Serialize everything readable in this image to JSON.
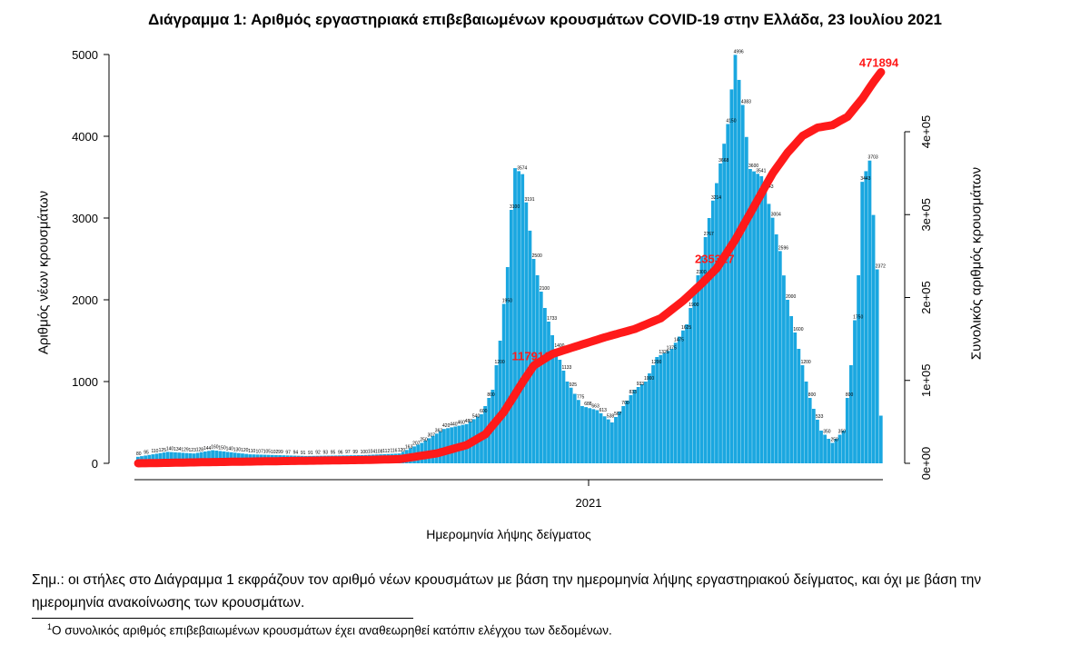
{
  "title": "Διάγραμμα 1: Αριθμός εργαστηριακά επιβεβαιωμένων κρουσμάτων COVID-19 στην Ελλάδα, 23 Ιουλίου 2021",
  "note": "Σημ.: οι στήλες στο Διάγραμμα 1 εκφράζουν τον αριθμό νέων κρουσμάτων με βάση την ημερομηνία λήψης εργαστηριακού δείγματος, και όχι με βάση την ημερομηνία ανακοίνωσης των κρουσμάτων.",
  "footnote_mark": "1",
  "footnote": "Ο συνολικός αριθμός επιβεβαιωμένων κρουσμάτων έχει αναθεωρηθεί κατόπιν ελέγχου των δεδομένων.",
  "colors": {
    "bars": "#1aa7e0",
    "cumulative_line": "#ff1a1a",
    "cumulative_labels": "#ff1a1a"
  },
  "chart_data": {
    "type": "bar",
    "title": "Διάγραμμα 1: Αριθμός εργαστηριακά επιβεβαιωμένων κρουσμάτων COVID-19 στην Ελλάδα, 23 Ιουλίου 2021",
    "xlabel": "Ημερομηνία λήψης δείγματος",
    "ylabel": "Αριθμός νέων κρουσμάτων",
    "y2label": "Συνολικός αριθμός κρουσμάτων",
    "x_ticks": [
      "2021"
    ],
    "y_ticks": [
      0,
      1000,
      2000,
      3000,
      4000,
      5000
    ],
    "y_tick_labels": [
      "0",
      "1000",
      "2000",
      "3000",
      "4000",
      "5000"
    ],
    "y2_ticks": [
      0,
      100000,
      200000,
      300000,
      400000
    ],
    "y2_tick_labels": [
      "0e+00",
      "1e+05",
      "2e+05",
      "3e+05",
      "4e+05"
    ],
    "ylim": [
      0,
      5000
    ],
    "y2lim": [
      0,
      400000
    ],
    "grid": false,
    "series": [
      {
        "name": "Αριθμός νέων κρουσμάτων",
        "type": "bar",
        "knots": [
          [
            0,
            80
          ],
          [
            8,
            140
          ],
          [
            15,
            120
          ],
          [
            20,
            160
          ],
          [
            30,
            110
          ],
          [
            45,
            90
          ],
          [
            60,
            100
          ],
          [
            70,
            120
          ],
          [
            76,
            250
          ],
          [
            82,
            420
          ],
          [
            88,
            480
          ],
          [
            92,
            600
          ],
          [
            95,
            900
          ],
          [
            97,
            1500
          ],
          [
            99,
            2400
          ],
          [
            100,
            3100
          ],
          [
            101,
            3610
          ],
          [
            103,
            3537
          ],
          [
            106,
            2500
          ],
          [
            109,
            1900
          ],
          [
            112,
            1400
          ],
          [
            115,
            1000
          ],
          [
            119,
            700
          ],
          [
            123,
            650
          ],
          [
            127,
            500
          ],
          [
            130,
            700
          ],
          [
            133,
            900
          ],
          [
            136,
            1000
          ],
          [
            139,
            1300
          ],
          [
            143,
            1400
          ],
          [
            147,
            1700
          ],
          [
            150,
            2300
          ],
          [
            153,
            3000
          ],
          [
            155,
            3427
          ],
          [
            158,
            4150
          ],
          [
            160,
            4996
          ],
          [
            162,
            4383
          ],
          [
            164,
            3600
          ],
          [
            167,
            3512
          ],
          [
            170,
            3004
          ],
          [
            172,
            2596
          ],
          [
            174,
            2000
          ],
          [
            177,
            1400
          ],
          [
            180,
            800
          ],
          [
            183,
            400
          ],
          [
            186,
            250
          ],
          [
            189,
            400
          ],
          [
            191,
            1200
          ],
          [
            193,
            2300
          ],
          [
            194,
            3443
          ],
          [
            196,
            3703
          ],
          [
            198,
            2372
          ],
          [
            199,
            583
          ]
        ],
        "labeled_values": [
          161,
          3610,
          3537,
          3427,
          4051,
          4150,
          4675,
          4996,
          4383,
          4247,
          3512,
          3004,
          2596,
          2455,
          2385,
          1919,
          1311,
          3443,
          3703,
          2372,
          583
        ]
      },
      {
        "name": "Συνολικός αριθμός κρουσμάτων",
        "type": "line",
        "axis": "y2",
        "labeled_points": [
          {
            "label": "117910",
            "value": 117910
          },
          {
            "label": "235317",
            "value": 235317
          },
          {
            "label": "471894",
            "value": 471894
          }
        ],
        "knots": [
          [
            0,
            0
          ],
          [
            20,
            1500
          ],
          [
            60,
            4000
          ],
          [
            70,
            5000
          ],
          [
            80,
            12000
          ],
          [
            88,
            22000
          ],
          [
            93,
            35000
          ],
          [
            98,
            62000
          ],
          [
            103,
            98000
          ],
          [
            106,
            117910
          ],
          [
            111,
            132000
          ],
          [
            118,
            142000
          ],
          [
            125,
            152000
          ],
          [
            133,
            162000
          ],
          [
            140,
            175000
          ],
          [
            146,
            196000
          ],
          [
            151,
            217000
          ],
          [
            155,
            235317
          ],
          [
            160,
            270000
          ],
          [
            165,
            310000
          ],
          [
            170,
            350000
          ],
          [
            174,
            375000
          ],
          [
            178,
            395000
          ],
          [
            182,
            405000
          ],
          [
            186,
            408000
          ],
          [
            190,
            418000
          ],
          [
            194,
            440000
          ],
          [
            197,
            460000
          ],
          [
            199,
            471894
          ]
        ]
      }
    ]
  }
}
